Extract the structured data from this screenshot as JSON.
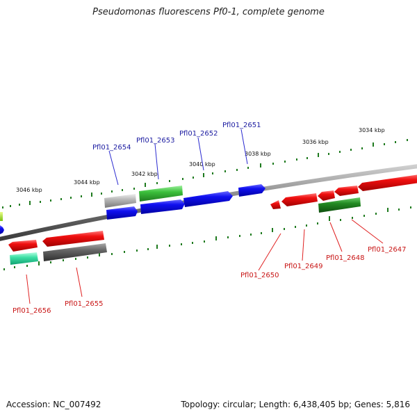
{
  "title": "Pseudomonas fluorescens Pf0-1, complete genome",
  "footer": {
    "accession": "Accession: NC_007492",
    "summary": "Topology: circular; Length: 6,438,405 bp; Genes: 5,816"
  },
  "colors": {
    "backbone": "#8a8a8a",
    "tick": "#1e7a1e",
    "label_plus": "#1a1aa0",
    "label_minus": "#c81414",
    "leader_plus": "#2a2ad0",
    "leader_minus": "#e02020"
  },
  "scale": {
    "ticks": [
      "3034 kbp",
      "3036 kbp",
      "3038 kbp",
      "3040 kbp",
      "3042 kbp",
      "3044 kbp",
      "3046 kbp"
    ]
  },
  "gene_labels": {
    "Pfl01_2647": "Pfl01_2647",
    "Pfl01_2648": "Pfl01_2648",
    "Pfl01_2649": "Pfl01_2649",
    "Pfl01_2650": "Pfl01_2650",
    "Pfl01_2651": "Pfl01_2651",
    "Pfl01_2652": "Pfl01_2652",
    "Pfl01_2653": "Pfl01_2653",
    "Pfl01_2654": "Pfl01_2654",
    "Pfl01_2655": "Pfl01_2655",
    "Pfl01_2656": "Pfl01_2656"
  }
}
